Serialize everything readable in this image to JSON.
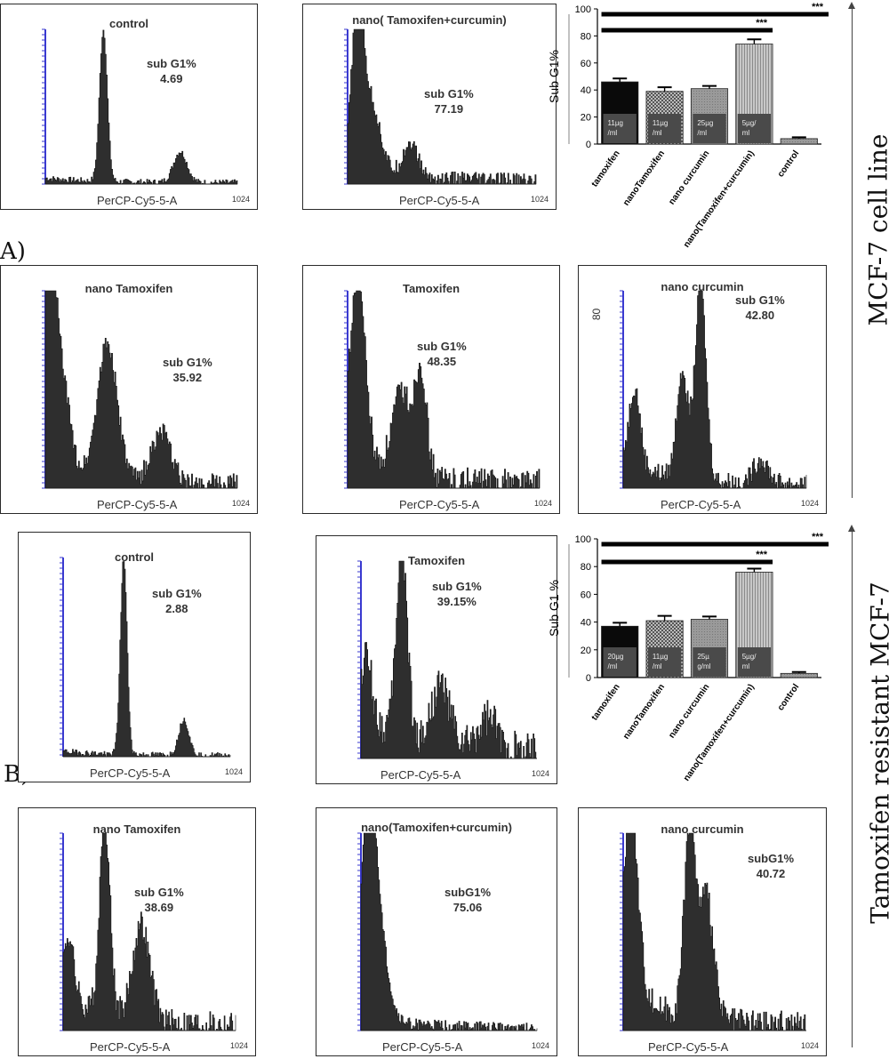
{
  "section_labels": {
    "a": "A)",
    "b": "B)"
  },
  "side_labels": {
    "top": "MCF-7 cell line",
    "bottom": "Tamoxifen resistant  MCF-7"
  },
  "histogram_common": {
    "x_label": "PerCP-Cy5-5-A",
    "x_max": "1024"
  },
  "histograms": [
    {
      "id": "a-control",
      "title": "control",
      "label": "sub G1%",
      "value": "4.69",
      "peaks": [
        [
          0.3,
          0.98,
          0.02
        ],
        [
          0.7,
          0.2,
          0.035
        ]
      ],
      "noise": 0.02,
      "debris": 0.03
    },
    {
      "id": "a-nano-tc",
      "title": "nano( Tamoxifen+curcumin)",
      "label": "sub G1%",
      "value": "77.19",
      "peaks": [
        [
          0.05,
          0.98,
          0.03
        ],
        [
          0.12,
          0.45,
          0.05
        ],
        [
          0.33,
          0.22,
          0.04
        ]
      ],
      "noise": 0.05,
      "debris": 0.1
    },
    {
      "id": "a-nano-tam",
      "title": "nano Tamoxifen",
      "label": "sub G1%",
      "value": "35.92",
      "peaks": [
        [
          0.02,
          0.98,
          0.03
        ],
        [
          0.08,
          0.45,
          0.04
        ],
        [
          0.32,
          0.68,
          0.05
        ],
        [
          0.6,
          0.25,
          0.05
        ]
      ],
      "noise": 0.05,
      "debris": 0.15
    },
    {
      "id": "a-tam",
      "title": "Tamoxifen",
      "label": "sub G1%",
      "value": "48.35",
      "peaks": [
        [
          0.05,
          0.95,
          0.04
        ],
        [
          0.28,
          0.42,
          0.05
        ],
        [
          0.38,
          0.52,
          0.03
        ]
      ],
      "noise": 0.07,
      "debris": 0.12
    },
    {
      "id": "a-nano-cur",
      "title": "nano curcumin",
      "label": "sub G1%",
      "value": "42.80",
      "y_tick": "80",
      "peaks": [
        [
          0.06,
          0.4,
          0.03
        ],
        [
          0.32,
          0.55,
          0.03
        ],
        [
          0.42,
          0.98,
          0.03
        ],
        [
          0.75,
          0.12,
          0.04
        ]
      ],
      "noise": 0.05,
      "debris": 0.12
    },
    {
      "id": "b-control",
      "title": "control",
      "label": "sub G1%",
      "value": "2.88",
      "peaks": [
        [
          0.36,
          0.98,
          0.02
        ],
        [
          0.72,
          0.18,
          0.03
        ]
      ],
      "noise": 0.015,
      "debris": 0.02
    },
    {
      "id": "b-tam",
      "title": "Tamoxifen",
      "label": "sub G1%",
      "value": "39.15%",
      "peaks": [
        [
          0.03,
          0.3,
          0.03
        ],
        [
          0.23,
          0.98,
          0.03
        ],
        [
          0.45,
          0.3,
          0.05
        ],
        [
          0.72,
          0.15,
          0.05
        ]
      ],
      "noise": 0.1,
      "debris": 0.2
    },
    {
      "id": "b-nano-tam",
      "title": "nano Tamoxifen",
      "label": "sub G1%",
      "value": "38.69",
      "peaks": [
        [
          0.03,
          0.32,
          0.03
        ],
        [
          0.24,
          0.98,
          0.03
        ],
        [
          0.45,
          0.48,
          0.05
        ]
      ],
      "noise": 0.07,
      "debris": 0.15
    },
    {
      "id": "b-nano-tc",
      "title": "nano(Tamoxifen+curcumin)",
      "label": "subG1%",
      "value": "75.06",
      "peaks": [
        [
          0.04,
          0.98,
          0.04
        ],
        [
          0.1,
          0.4,
          0.05
        ]
      ],
      "noise": 0.03,
      "debris": 0.07
    },
    {
      "id": "b-nano-cur",
      "title": "nano curcumin",
      "label": "subG1%",
      "value": "40.72",
      "peaks": [
        [
          0.04,
          0.9,
          0.04
        ],
        [
          0.36,
          0.95,
          0.03
        ],
        [
          0.45,
          0.62,
          0.04
        ]
      ],
      "noise": 0.07,
      "debris": 0.2
    }
  ],
  "chart_data": [
    {
      "type": "bar",
      "ylabel": "Sub G1%",
      "ylim": [
        0,
        100
      ],
      "yticks": [
        0,
        20,
        40,
        60,
        80,
        100
      ],
      "categories": [
        "tamoxifen",
        "nanoTamoxifen",
        "nano curcumin",
        "nano(Tamoxifen+curcumin)",
        "control"
      ],
      "values": [
        46,
        39,
        41,
        74,
        4
      ],
      "errors": [
        2.5,
        3,
        2,
        3.5,
        1
      ],
      "dose_labels": [
        "11µg /ml",
        "11µg /ml",
        "25µg /ml",
        "5µg/ ml",
        ""
      ],
      "significance": [
        {
          "label": "***"
        },
        {
          "label": "***"
        }
      ]
    },
    {
      "type": "bar",
      "ylabel": "Sub G1 %",
      "ylim": [
        0,
        100
      ],
      "yticks": [
        0,
        20,
        40,
        60,
        80,
        100
      ],
      "categories": [
        "tamoxifen",
        "nanoTamoxifen",
        "nano curcumin",
        "nano(Tamoxifen+curcumin)",
        "control"
      ],
      "values": [
        37,
        41,
        42,
        76,
        3
      ],
      "errors": [
        2.5,
        3.5,
        2,
        2.5,
        1
      ],
      "dose_labels": [
        "20µg /ml",
        "11µg /ml",
        "25µ g/ml",
        "5µg/ ml",
        ""
      ],
      "significance": [
        {
          "label": "***"
        },
        {
          "label": "***"
        }
      ]
    }
  ],
  "colors": {
    "fill": "#2e2e2e",
    "axis_blue": "#3a3ad0",
    "bar_black": "#0a0a0a",
    "bar_grey": "#9a9a9a",
    "bar_dark": "#4a4a4a"
  }
}
